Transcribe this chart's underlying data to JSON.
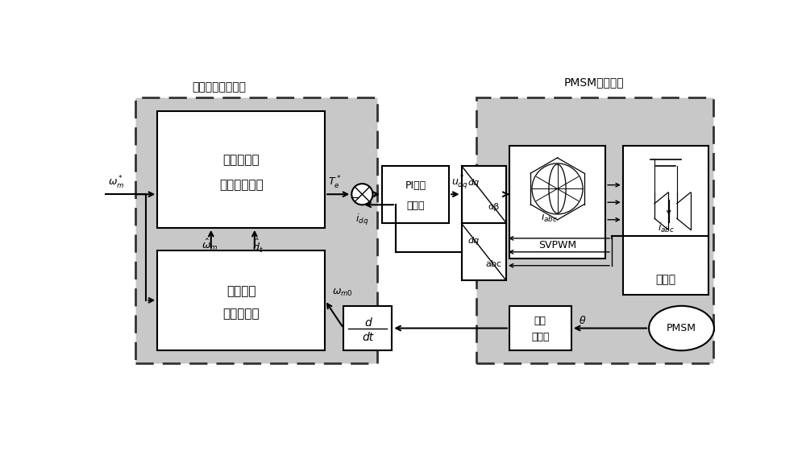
{
  "bg_color": "#ffffff",
  "gray_fill": "#c8c8c8",
  "white_fill": "#ffffff",
  "title1": "自抗扰转速控制器",
  "title2": "PMSM和驱动器",
  "box1_line1": "准比例谐振",
  "box1_line2": "自抗扰控制律",
  "box2_line1": "PI电流",
  "box2_line2": "控制器",
  "box5_label": "逆变器",
  "box6_line1": "开关扩张",
  "box6_line2": "状态观测器",
  "box9_line1": "位置",
  "box9_line2": "传感器",
  "pmsm_label": "PMSM",
  "svpwm_label": "SVPWM"
}
